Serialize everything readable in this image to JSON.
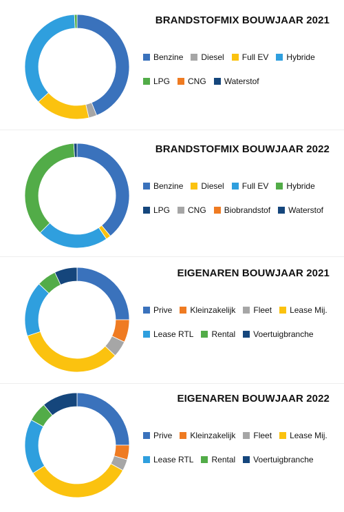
{
  "chart_data": [
    {
      "type": "pie",
      "title": "BRANDSTOFMIX BOUWJAAR 2021",
      "legend_rows": [
        [
          "Benzine",
          "Diesel",
          "Full EV",
          "Hybride"
        ],
        [
          "LPG",
          "CNG",
          "Waterstof"
        ]
      ],
      "series": [
        {
          "name": "Benzine",
          "value": 44,
          "color": "#3a72bc"
        },
        {
          "name": "Diesel",
          "value": 2.5,
          "color": "#a6a6a6"
        },
        {
          "name": "Full EV",
          "value": 17,
          "color": "#fbc20f"
        },
        {
          "name": "Hybride",
          "value": 36,
          "color": "#2f9fde"
        },
        {
          "name": "LPG",
          "value": 0.8,
          "color": "#52ac48"
        },
        {
          "name": "CNG",
          "value": 0,
          "color": "#ef7b22"
        },
        {
          "name": "Waterstof",
          "value": 0,
          "color": "#15467c"
        }
      ]
    },
    {
      "type": "pie",
      "title": "BRANDSTOFMIX BOUWJAAR 2022",
      "legend_rows": [
        [
          "Benzine",
          "Diesel",
          "Full EV",
          "Hybride"
        ],
        [
          "LPG",
          "CNG",
          "Biobrandstof",
          "Waterstof"
        ]
      ],
      "series": [
        {
          "name": "Benzine",
          "value": 39,
          "color": "#3a72bc"
        },
        {
          "name": "Diesel",
          "value": 1.5,
          "color": "#fbc20f"
        },
        {
          "name": "Full EV",
          "value": 22,
          "color": "#2f9fde"
        },
        {
          "name": "Hybride",
          "value": 36.5,
          "color": "#52ac48"
        },
        {
          "name": "LPG",
          "value": 1,
          "color": "#15467c"
        },
        {
          "name": "CNG",
          "value": 0,
          "color": "#a6a6a6"
        },
        {
          "name": "Biobrandstof",
          "value": 0,
          "color": "#ef7b22"
        },
        {
          "name": "Waterstof",
          "value": 0,
          "color": "#15467c"
        }
      ]
    },
    {
      "type": "pie",
      "title": "EIGENAREN BOUWJAAR 2021",
      "legend_rows": [
        [
          "Prive",
          "Kleinzakelijk",
          "Fleet",
          "Lease Mij."
        ],
        [
          "Lease RTL",
          "Rental",
          "Voertuigbranche"
        ]
      ],
      "series": [
        {
          "name": "Prive",
          "value": 25,
          "color": "#3a72bc"
        },
        {
          "name": "Kleinzakelijk",
          "value": 7,
          "color": "#ef7b22"
        },
        {
          "name": "Fleet",
          "value": 5,
          "color": "#a6a6a6"
        },
        {
          "name": "Lease Mij.",
          "value": 33,
          "color": "#fbc20f"
        },
        {
          "name": "Lease RTL",
          "value": 17,
          "color": "#2f9fde"
        },
        {
          "name": "Rental",
          "value": 6,
          "color": "#52ac48"
        },
        {
          "name": "Voertuigbranche",
          "value": 7,
          "color": "#15467c"
        }
      ]
    },
    {
      "type": "pie",
      "title": "EIGENAREN BOUWJAAR 2022",
      "legend_rows": [
        [
          "Prive",
          "Kleinzakelijk",
          "Fleet",
          "Lease Mij."
        ],
        [
          "Lease RTL",
          "Rental",
          "Voertuigbranche"
        ]
      ],
      "series": [
        {
          "name": "Prive",
          "value": 25,
          "color": "#3a72bc"
        },
        {
          "name": "Kleinzakelijk",
          "value": 4.5,
          "color": "#ef7b22"
        },
        {
          "name": "Fleet",
          "value": 3.5,
          "color": "#a6a6a6"
        },
        {
          "name": "Lease Mij.",
          "value": 33,
          "color": "#fbc20f"
        },
        {
          "name": "Lease RTL",
          "value": 17,
          "color": "#2f9fde"
        },
        {
          "name": "Rental",
          "value": 6,
          "color": "#52ac48"
        },
        {
          "name": "Voertuigbranche",
          "value": 11,
          "color": "#15467c"
        }
      ]
    }
  ]
}
